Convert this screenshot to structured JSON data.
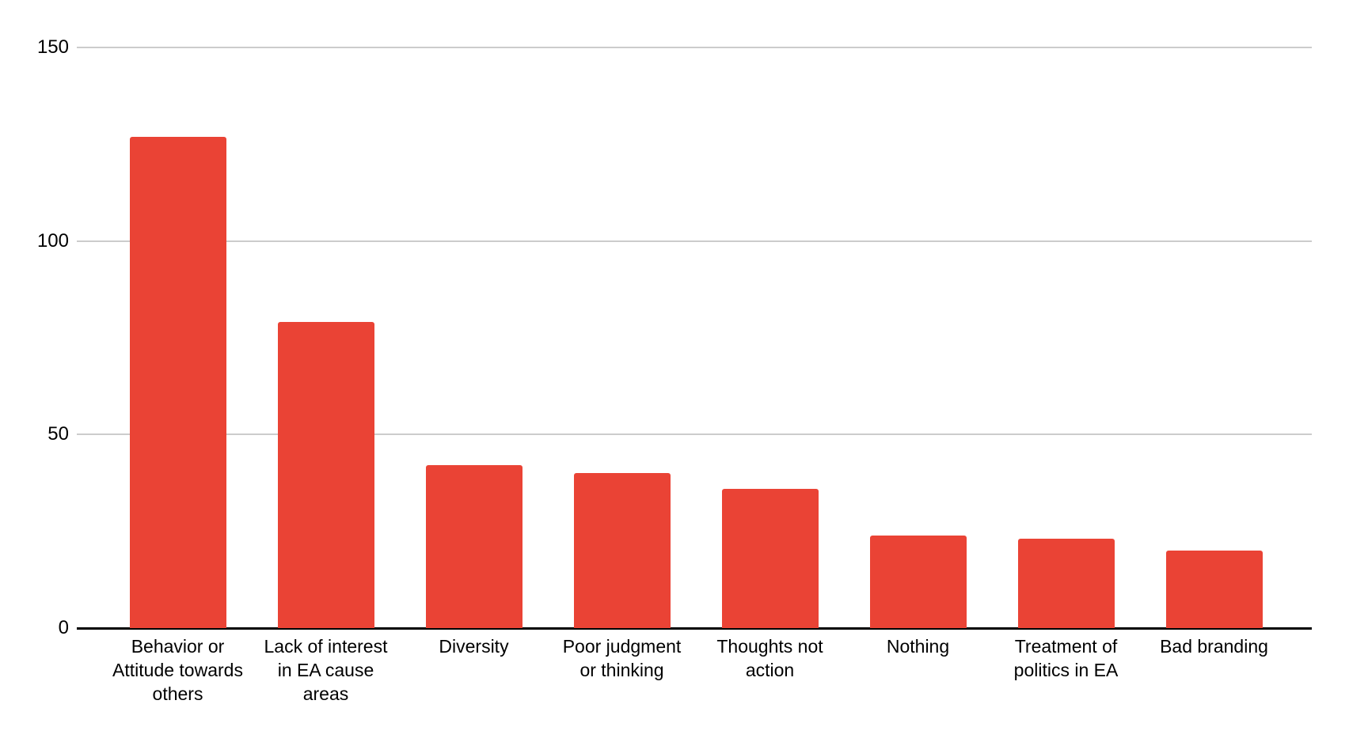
{
  "chart_data": {
    "type": "bar",
    "title": "",
    "xlabel": "",
    "ylabel": "",
    "categories": [
      "Behavior or Attitude towards others",
      "Lack of interest in EA cause areas",
      "Diversity",
      "Poor judgment or thinking",
      "Thoughts not action",
      "Nothing",
      "Treatment of politics in EA",
      "Bad branding"
    ],
    "categories_wrapped": [
      [
        "Behavior or",
        "Attitude towards",
        "others"
      ],
      [
        "Lack of interest",
        "in EA cause",
        "areas"
      ],
      [
        "Diversity"
      ],
      [
        "Poor judgment",
        "or thinking"
      ],
      [
        "Thoughts not",
        "action"
      ],
      [
        "Nothing"
      ],
      [
        "Treatment of",
        "politics in EA"
      ],
      [
        "Bad branding"
      ]
    ],
    "values": [
      127,
      79,
      42,
      40,
      36,
      24,
      23,
      20
    ],
    "ylim": [
      0,
      150
    ],
    "yticks": [
      0,
      50,
      100,
      150
    ],
    "grid": true,
    "legend": "none",
    "bar_color": "#ea4335",
    "gridline_color": "#cccccc",
    "axis_color": "#000000",
    "text_color": "#000000"
  }
}
